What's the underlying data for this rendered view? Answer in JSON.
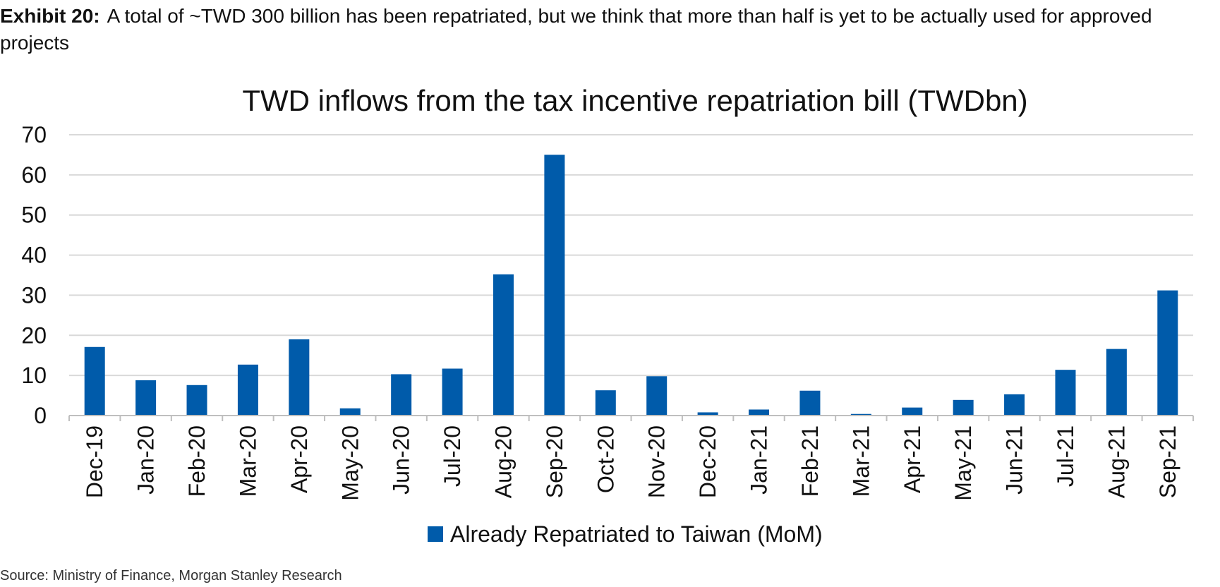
{
  "exhibit": {
    "label": "Exhibit 20:",
    "caption": "A total of ~TWD 300 billion has been repatriated, but we think that more than half is yet to be actually used for approved projects"
  },
  "source": "Source: Ministry of Finance, Morgan Stanley Research",
  "colors": {
    "bar": "#005BAA",
    "grid": "#d9d9d9",
    "axis": "#bfbfbf"
  },
  "chart_data": {
    "type": "bar",
    "title": "TWD inflows from the tax incentive repatriation bill (TWDbn)",
    "xlabel": "",
    "ylabel": "",
    "ylim": [
      0,
      70
    ],
    "yticks": [
      0,
      10,
      20,
      30,
      40,
      50,
      60,
      70
    ],
    "grid": true,
    "legend_position": "bottom",
    "categories": [
      "Dec-19",
      "Jan-20",
      "Feb-20",
      "Mar-20",
      "Apr-20",
      "May-20",
      "Jun-20",
      "Jul-20",
      "Aug-20",
      "Sep-20",
      "Oct-20",
      "Nov-20",
      "Dec-20",
      "Jan-21",
      "Feb-21",
      "Mar-21",
      "Apr-21",
      "May-21",
      "Jun-21",
      "Jul-21",
      "Aug-21",
      "Sep-21"
    ],
    "series": [
      {
        "name": "Already Repatriated to Taiwan (MoM)",
        "values": [
          17.1,
          8.8,
          7.6,
          12.7,
          19.0,
          1.8,
          10.3,
          11.7,
          35.2,
          65.0,
          6.3,
          9.8,
          0.8,
          1.5,
          6.2,
          0.4,
          2.0,
          3.9,
          5.3,
          11.4,
          16.6,
          31.2
        ]
      }
    ]
  }
}
